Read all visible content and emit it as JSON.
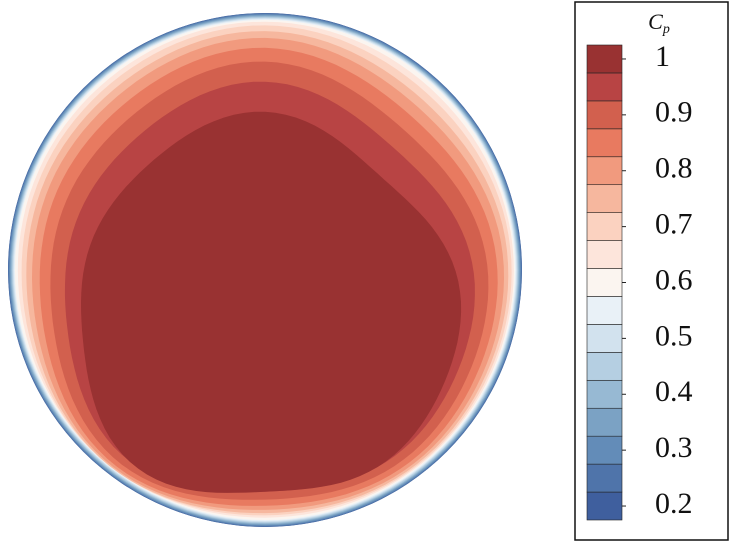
{
  "chart_data": {
    "type": "contour",
    "colorbar_label": {
      "symbol": "C",
      "subscript": "p"
    },
    "levels": [
      0.175,
      0.225,
      0.275,
      0.325,
      0.375,
      0.425,
      0.475,
      0.525,
      0.575,
      0.625,
      0.675,
      0.725,
      0.775,
      0.825,
      0.875,
      0.925,
      0.975,
      1.025
    ],
    "colors": [
      "#3f5f9e",
      "#4f74aa",
      "#638cb8",
      "#7ba2c4",
      "#97b9d3",
      "#b5cfe2",
      "#d2e2ee",
      "#e9f1f7",
      "#fbf5f0",
      "#fde5db",
      "#fbd2c0",
      "#f6b79e",
      "#f19a7e",
      "#e87a60",
      "#d2604e",
      "#b84444",
      "#993232"
    ],
    "clim": [
      0.175,
      1.025
    ],
    "cticks": [
      0.2,
      0.3,
      0.4,
      0.5,
      0.6,
      0.7,
      0.8,
      0.9,
      1
    ]
  }
}
